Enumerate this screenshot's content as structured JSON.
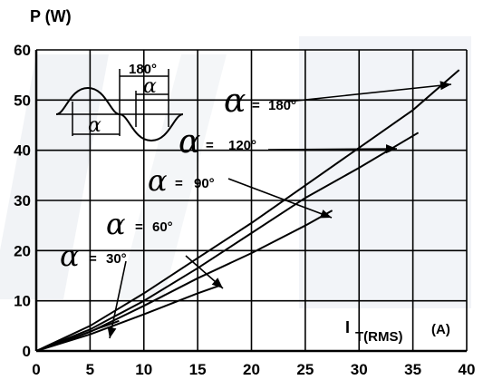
{
  "chart_data": {
    "type": "line",
    "ylabel": "P (W)",
    "xlabel_main": "I",
    "xlabel_sub": "T(RMS)",
    "xlabel_unit": "(A)",
    "xlim": [
      0,
      40
    ],
    "ylim": [
      0,
      60
    ],
    "x_ticks": [
      "0",
      "5",
      "10",
      "15",
      "20",
      "25",
      "30",
      "35",
      "40"
    ],
    "y_ticks": [
      "0",
      "10",
      "20",
      "30",
      "40",
      "50",
      "60"
    ],
    "grid": true,
    "inset": {
      "top_label": "180°",
      "alpha_top": "α",
      "alpha_bottom": "α"
    },
    "series": [
      {
        "label_alpha": "α",
        "label_sep": "=",
        "label_angle": "180°",
        "x": [
          0,
          5,
          10,
          15,
          20,
          25,
          30,
          35,
          39.3
        ],
        "y": [
          0,
          5,
          11.5,
          18.5,
          25.5,
          33,
          40.5,
          48,
          56
        ]
      },
      {
        "label_alpha": "α",
        "label_sep": "=",
        "label_angle": "120°",
        "x": [
          0,
          5,
          10,
          15,
          20,
          25,
          30,
          35.5
        ],
        "y": [
          0,
          4.3,
          10,
          16.5,
          23.5,
          30.5,
          36.5,
          43.5
        ]
      },
      {
        "label_alpha": "α",
        "label_sep": "=",
        "label_angle": "90°",
        "x": [
          0,
          5,
          10,
          15,
          20,
          25,
          27.5
        ],
        "y": [
          0,
          3.8,
          9,
          14.5,
          19.5,
          25,
          28
        ]
      },
      {
        "label_alpha": "α",
        "label_sep": "=",
        "label_angle": "60°",
        "x": [
          0,
          5,
          10,
          15,
          17
        ],
        "y": [
          0,
          3.3,
          7.3,
          11.5,
          13
        ]
      },
      {
        "label_alpha": "α",
        "label_sep": "=",
        "label_angle": "30°",
        "x": [
          0,
          3,
          6,
          7.7
        ],
        "y": [
          0,
          2.2,
          4.7,
          6
        ]
      }
    ]
  }
}
